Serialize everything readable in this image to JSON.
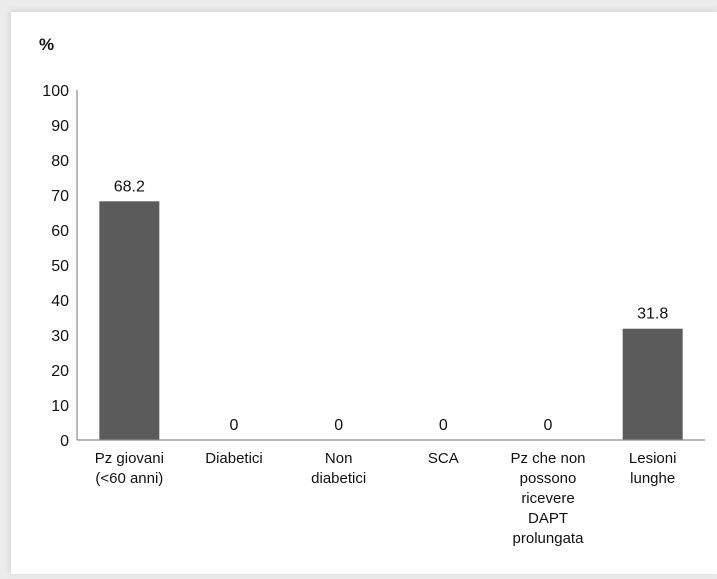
{
  "chart_data": {
    "type": "bar",
    "ylabel": "%",
    "categories": [
      [
        "Pz giovani",
        "(<60 anni)"
      ],
      [
        "Diabetici"
      ],
      [
        "Non",
        "diabetici"
      ],
      [
        "SCA"
      ],
      [
        "Pz che non",
        "possono",
        "ricevere",
        "DAPT",
        "prolungata"
      ],
      [
        "Lesioni",
        "lunghe"
      ]
    ],
    "values": [
      68.2,
      0,
      0,
      0,
      0,
      31.8
    ],
    "value_labels": [
      "68.2",
      "0",
      "0",
      "0",
      "0",
      "31.8"
    ],
    "ylim": [
      0,
      100
    ],
    "yticks": [
      0,
      10,
      20,
      30,
      40,
      50,
      60,
      70,
      80,
      90,
      100
    ],
    "grid": false,
    "legend": "none",
    "bar_color": "#5b5b5b"
  }
}
